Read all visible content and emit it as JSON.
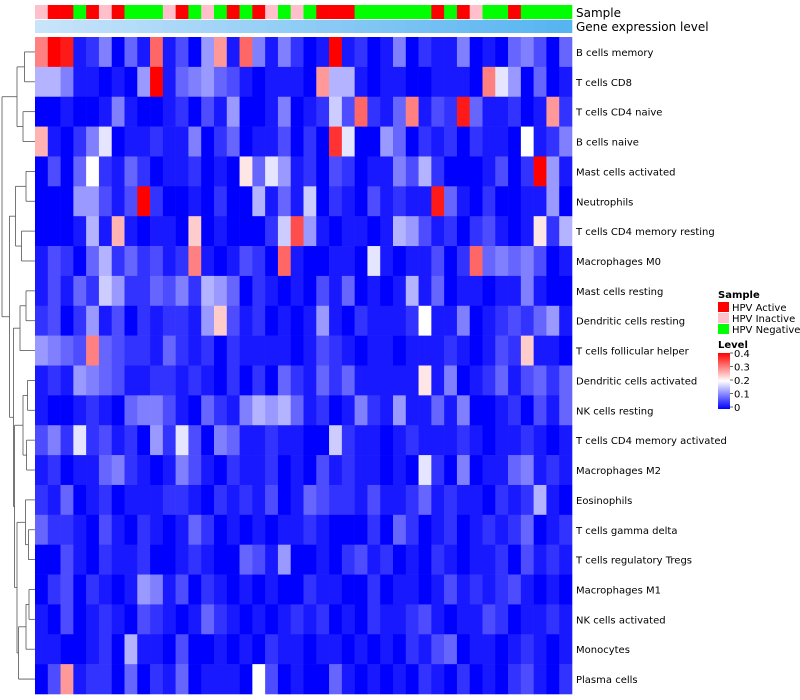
{
  "chart_data": {
    "type": "heatmap",
    "title": "",
    "annotation_labels": {
      "sample": "Sample",
      "gene_expression": "Gene expression level"
    },
    "rows": [
      "B cells memory",
      "T cells CD8",
      "T cells CD4 naive",
      "B cells naive",
      "Mast cells activated",
      "Neutrophils",
      "T cells CD4 memory resting",
      "Macrophages M0",
      "Mast cells resting",
      "Dendritic cells resting",
      "T cells follicular helper",
      "Dendritic cells activated",
      "NK cells resting",
      "T cells CD4 memory activated",
      "Macrophages M2",
      "Eosinophils",
      "T cells gamma delta",
      "T cells regulatory  Tregs",
      "Macrophages M1",
      "NK cells activated",
      "Monocytes",
      "Plasma cells"
    ],
    "sample_groups": [
      "HPV Inactive",
      "HPV Active",
      "HPV Active",
      "HPV Negative",
      "HPV Active",
      "HPV Inactive",
      "HPV Active",
      "HPV Negative",
      "HPV Negative",
      "HPV Negative",
      "HPV Inactive",
      "HPV Active",
      "HPV Negative",
      "HPV Inactive",
      "HPV Negative",
      "HPV Active",
      "HPV Negative",
      "HPV Active",
      "HPV Inactive",
      "HPV Negative",
      "HPV Inactive",
      "HPV Negative",
      "HPV Active",
      "HPV Active",
      "HPV Active",
      "HPV Negative",
      "HPV Negative",
      "HPV Negative",
      "HPV Negative",
      "HPV Negative",
      "HPV Negative",
      "HPV Active",
      "HPV Negative",
      "HPV Active",
      "HPV Inactive",
      "HPV Negative",
      "HPV Negative",
      "HPV Active",
      "HPV Negative",
      "HPV Negative",
      "HPV Negative",
      "HPV Negative"
    ],
    "values": [
      [
        0.3,
        0.4,
        0.38,
        0.02,
        0.04,
        0.1,
        0.0,
        0.08,
        0.02,
        0.32,
        0.02,
        0.06,
        0.0,
        0.12,
        0.28,
        0.02,
        0.32,
        0.1,
        0.02,
        0.1,
        0.04,
        0.0,
        0.02,
        0.4,
        0.02,
        0.04,
        0.0,
        0.02,
        0.1,
        0.0,
        0.04,
        0.02,
        0.02,
        0.1,
        0.0,
        0.02,
        0.0,
        0.08,
        0.1,
        0.06,
        0.0,
        0.08
      ],
      [
        0.14,
        0.14,
        0.1,
        0.02,
        0.02,
        0.0,
        0.02,
        0.0,
        0.12,
        0.4,
        0.02,
        0.08,
        0.1,
        0.12,
        0.08,
        0.06,
        0.02,
        0.0,
        0.02,
        0.02,
        0.02,
        0.0,
        0.28,
        0.14,
        0.14,
        0.02,
        0.0,
        0.02,
        0.02,
        0.0,
        0.0,
        0.02,
        0.02,
        0.02,
        0.0,
        0.3,
        0.18,
        0.12,
        0.0,
        0.08,
        0.0,
        0.02
      ],
      [
        0.0,
        0.0,
        0.02,
        0.0,
        0.0,
        0.02,
        0.1,
        0.02,
        0.0,
        0.0,
        0.02,
        0.04,
        0.0,
        0.06,
        0.02,
        0.12,
        0.0,
        0.0,
        0.02,
        0.1,
        0.0,
        0.02,
        0.04,
        0.16,
        0.06,
        0.32,
        0.04,
        0.02,
        0.08,
        0.3,
        0.02,
        0.06,
        0.04,
        0.38,
        0.08,
        0.02,
        0.02,
        0.04,
        0.0,
        0.02,
        0.28,
        0.04
      ],
      [
        0.26,
        0.02,
        0.0,
        0.04,
        0.1,
        0.18,
        0.0,
        0.02,
        0.02,
        0.04,
        0.02,
        0.02,
        0.1,
        0.0,
        0.04,
        0.08,
        0.0,
        0.02,
        0.02,
        0.06,
        0.0,
        0.04,
        0.0,
        0.36,
        0.18,
        0.0,
        0.0,
        0.12,
        0.08,
        0.0,
        0.04,
        0.02,
        0.04,
        0.0,
        0.04,
        0.02,
        0.02,
        0.0,
        0.2,
        0.02,
        0.04,
        0.1
      ],
      [
        0.0,
        0.06,
        0.0,
        0.08,
        0.2,
        0.04,
        0.02,
        0.08,
        0.04,
        0.0,
        0.02,
        0.02,
        0.04,
        0.0,
        0.02,
        0.0,
        0.22,
        0.08,
        0.18,
        0.12,
        0.02,
        0.04,
        0.0,
        0.06,
        0.04,
        0.0,
        0.02,
        0.02,
        0.1,
        0.06,
        0.14,
        0.04,
        0.0,
        0.0,
        0.0,
        0.02,
        0.06,
        0.0,
        0.04,
        0.4,
        0.12,
        0.02
      ],
      [
        0.0,
        0.0,
        0.0,
        0.12,
        0.12,
        0.06,
        0.02,
        0.06,
        0.4,
        0.04,
        0.0,
        0.0,
        0.02,
        0.0,
        0.04,
        0.0,
        0.0,
        0.14,
        0.02,
        0.08,
        0.02,
        0.16,
        0.0,
        0.04,
        0.02,
        0.0,
        0.06,
        0.02,
        0.04,
        0.02,
        0.02,
        0.38,
        0.08,
        0.02,
        0.0,
        0.04,
        0.0,
        0.0,
        0.02,
        0.02,
        0.12,
        0.0
      ],
      [
        0.0,
        0.0,
        0.0,
        0.02,
        0.14,
        0.02,
        0.26,
        0.02,
        0.0,
        0.02,
        0.02,
        0.0,
        0.24,
        0.0,
        0.02,
        0.0,
        0.0,
        0.0,
        0.04,
        0.16,
        0.34,
        0.12,
        0.02,
        0.0,
        0.02,
        0.02,
        0.0,
        0.02,
        0.14,
        0.12,
        0.06,
        0.02,
        0.04,
        0.0,
        0.04,
        0.06,
        0.02,
        0.0,
        0.02,
        0.22,
        0.04,
        0.14
      ],
      [
        0.02,
        0.06,
        0.04,
        0.0,
        0.08,
        0.14,
        0.04,
        0.08,
        0.04,
        0.06,
        0.02,
        0.04,
        0.3,
        0.02,
        0.0,
        0.02,
        0.06,
        0.04,
        0.0,
        0.32,
        0.02,
        0.0,
        0.0,
        0.02,
        0.02,
        0.0,
        0.18,
        0.02,
        0.0,
        0.02,
        0.02,
        0.06,
        0.0,
        0.04,
        0.32,
        0.08,
        0.1,
        0.08,
        0.1,
        0.06,
        0.0,
        0.02
      ],
      [
        0.02,
        0.06,
        0.02,
        0.08,
        0.04,
        0.16,
        0.12,
        0.04,
        0.04,
        0.08,
        0.06,
        0.1,
        0.04,
        0.14,
        0.12,
        0.08,
        0.0,
        0.04,
        0.02,
        0.0,
        0.02,
        0.0,
        0.06,
        0.02,
        0.08,
        0.0,
        0.02,
        0.0,
        0.02,
        0.14,
        0.02,
        0.08,
        0.0,
        0.02,
        0.02,
        0.0,
        0.02,
        0.02,
        0.1,
        0.02,
        0.0,
        0.0
      ],
      [
        0.04,
        0.06,
        0.0,
        0.04,
        0.12,
        0.02,
        0.06,
        0.0,
        0.04,
        0.02,
        0.04,
        0.04,
        0.02,
        0.12,
        0.24,
        0.06,
        0.02,
        0.04,
        0.0,
        0.02,
        0.0,
        0.02,
        0.12,
        0.02,
        0.0,
        0.04,
        0.02,
        0.02,
        0.02,
        0.04,
        0.2,
        0.02,
        0.02,
        0.1,
        0.0,
        0.02,
        0.04,
        0.06,
        0.04,
        0.08,
        0.12,
        0.02
      ],
      [
        0.12,
        0.1,
        0.08,
        0.06,
        0.3,
        0.08,
        0.06,
        0.04,
        0.04,
        0.02,
        0.08,
        0.04,
        0.02,
        0.04,
        0.0,
        0.04,
        0.02,
        0.02,
        0.02,
        0.02,
        0.0,
        0.02,
        0.06,
        0.04,
        0.02,
        0.0,
        0.02,
        0.02,
        0.0,
        0.02,
        0.02,
        0.02,
        0.04,
        0.02,
        0.0,
        0.02,
        0.06,
        0.04,
        0.24,
        0.02,
        0.02,
        0.0
      ],
      [
        0.02,
        0.04,
        0.02,
        0.12,
        0.1,
        0.08,
        0.06,
        0.02,
        0.02,
        0.04,
        0.04,
        0.02,
        0.04,
        0.02,
        0.0,
        0.04,
        0.0,
        0.04,
        0.0,
        0.08,
        0.04,
        0.02,
        0.08,
        0.04,
        0.08,
        0.02,
        0.02,
        0.02,
        0.02,
        0.02,
        0.22,
        0.02,
        0.1,
        0.0,
        0.02,
        0.04,
        0.08,
        0.02,
        0.06,
        0.08,
        0.04,
        0.08
      ],
      [
        0.02,
        0.0,
        0.0,
        0.02,
        0.04,
        0.02,
        0.0,
        0.08,
        0.1,
        0.1,
        0.06,
        0.02,
        0.0,
        0.08,
        0.04,
        0.02,
        0.1,
        0.14,
        0.12,
        0.14,
        0.08,
        0.02,
        0.04,
        0.0,
        0.02,
        0.1,
        0.04,
        0.02,
        0.12,
        0.02,
        0.02,
        0.08,
        0.02,
        0.1,
        0.0,
        0.0,
        0.02,
        0.04,
        0.0,
        0.06,
        0.02,
        0.08
      ],
      [
        0.06,
        0.1,
        0.04,
        0.18,
        0.04,
        0.06,
        0.02,
        0.04,
        0.0,
        0.12,
        0.04,
        0.18,
        0.06,
        0.0,
        0.1,
        0.08,
        0.02,
        0.02,
        0.04,
        0.02,
        0.02,
        0.0,
        0.0,
        0.16,
        0.04,
        0.02,
        0.02,
        0.0,
        0.02,
        0.04,
        0.02,
        0.02,
        0.02,
        0.04,
        0.02,
        0.0,
        0.02,
        0.02,
        0.04,
        0.02,
        0.0,
        0.02
      ],
      [
        0.02,
        0.04,
        0.0,
        0.02,
        0.02,
        0.08,
        0.1,
        0.04,
        0.02,
        0.0,
        0.02,
        0.1,
        0.06,
        0.02,
        0.0,
        0.04,
        0.02,
        0.02,
        0.04,
        0.0,
        0.02,
        0.0,
        0.06,
        0.02,
        0.04,
        0.02,
        0.02,
        0.0,
        0.02,
        0.0,
        0.18,
        0.04,
        0.0,
        0.1,
        0.0,
        0.02,
        0.02,
        0.08,
        0.1,
        0.02,
        0.04,
        0.02
      ],
      [
        0.04,
        0.02,
        0.08,
        0.0,
        0.02,
        0.04,
        0.0,
        0.02,
        0.02,
        0.02,
        0.04,
        0.04,
        0.02,
        0.0,
        0.04,
        0.02,
        0.04,
        0.02,
        0.06,
        0.0,
        0.02,
        0.08,
        0.06,
        0.04,
        0.04,
        0.02,
        0.06,
        0.02,
        0.02,
        0.04,
        0.08,
        0.02,
        0.04,
        0.02,
        0.02,
        0.0,
        0.04,
        0.02,
        0.04,
        0.14,
        0.02,
        0.0
      ],
      [
        0.08,
        0.04,
        0.04,
        0.02,
        0.0,
        0.06,
        0.02,
        0.0,
        0.04,
        0.02,
        0.0,
        0.02,
        0.08,
        0.04,
        0.0,
        0.02,
        0.0,
        0.02,
        0.0,
        0.02,
        0.02,
        0.04,
        0.02,
        0.0,
        0.0,
        0.0,
        0.04,
        0.0,
        0.08,
        0.04,
        0.0,
        0.02,
        0.04,
        0.0,
        0.02,
        0.04,
        0.02,
        0.04,
        0.08,
        0.0,
        0.02,
        0.04
      ],
      [
        0.0,
        0.0,
        0.06,
        0.02,
        0.0,
        0.04,
        0.02,
        0.02,
        0.04,
        0.0,
        0.0,
        0.02,
        0.04,
        0.02,
        0.0,
        0.0,
        0.08,
        0.06,
        0.02,
        0.12,
        0.0,
        0.0,
        0.02,
        0.0,
        0.04,
        0.06,
        0.02,
        0.04,
        0.0,
        0.02,
        0.0,
        0.04,
        0.02,
        0.0,
        0.02,
        0.02,
        0.04,
        0.0,
        0.06,
        0.02,
        0.04,
        0.02
      ],
      [
        0.0,
        0.04,
        0.06,
        0.0,
        0.04,
        0.02,
        0.0,
        0.02,
        0.12,
        0.1,
        0.02,
        0.06,
        0.0,
        0.04,
        0.02,
        0.0,
        0.02,
        0.0,
        0.02,
        0.0,
        0.0,
        0.04,
        0.02,
        0.02,
        0.0,
        0.0,
        0.04,
        0.0,
        0.02,
        0.02,
        0.0,
        0.02,
        0.06,
        0.02,
        0.04,
        0.02,
        0.04,
        0.06,
        0.02,
        0.0,
        0.02,
        0.0
      ],
      [
        0.02,
        0.0,
        0.06,
        0.0,
        0.02,
        0.04,
        0.02,
        0.0,
        0.06,
        0.04,
        0.02,
        0.0,
        0.02,
        0.08,
        0.04,
        0.02,
        0.0,
        0.02,
        0.0,
        0.02,
        0.04,
        0.02,
        0.04,
        0.0,
        0.02,
        0.0,
        0.04,
        0.02,
        0.02,
        0.04,
        0.06,
        0.02,
        0.0,
        0.02,
        0.02,
        0.06,
        0.04,
        0.0,
        0.02,
        0.02,
        0.04,
        0.02
      ],
      [
        0.02,
        0.02,
        0.0,
        0.0,
        0.02,
        0.04,
        0.0,
        0.14,
        0.02,
        0.02,
        0.0,
        0.06,
        0.0,
        0.0,
        0.02,
        0.0,
        0.02,
        0.0,
        0.04,
        0.02,
        0.02,
        0.0,
        0.02,
        0.02,
        0.0,
        0.02,
        0.0,
        0.02,
        0.0,
        0.04,
        0.02,
        0.06,
        0.08,
        0.0,
        0.02,
        0.02,
        0.0,
        0.02,
        0.04,
        0.02,
        0.0,
        0.02
      ],
      [
        0.0,
        0.06,
        0.28,
        0.02,
        0.04,
        0.04,
        0.0,
        0.08,
        0.0,
        0.04,
        0.02,
        0.08,
        0.0,
        0.02,
        0.02,
        0.02,
        0.0,
        0.2,
        0.06,
        0.0,
        0.02,
        0.0,
        0.0,
        0.08,
        0.02,
        0.0,
        0.02,
        0.0,
        0.02,
        0.0,
        0.04,
        0.02,
        0.0,
        0.04,
        0.0,
        0.02,
        0.0,
        0.04,
        0.06,
        0.02,
        0.0,
        0.04
      ]
    ],
    "legend_sample": {
      "title": "Sample",
      "entries": [
        {
          "label": "HPV Active",
          "color": "#ff0000"
        },
        {
          "label": "HPV Inactive",
          "color": "#ffc0cb"
        },
        {
          "label": "HPV Negative",
          "color": "#00ff00"
        }
      ]
    },
    "legend_level": {
      "title": "Level",
      "ticks": [
        "0.4",
        "0.3",
        "0.2",
        "0.1",
        "0"
      ],
      "range": [
        0,
        0.4
      ],
      "colors": {
        "low": "#0000ff",
        "mid": "#ffffff",
        "high": "#ff0000"
      }
    },
    "gene_expression_colors": {
      "low": "#c8e4fb",
      "high": "#56b4f0"
    }
  }
}
